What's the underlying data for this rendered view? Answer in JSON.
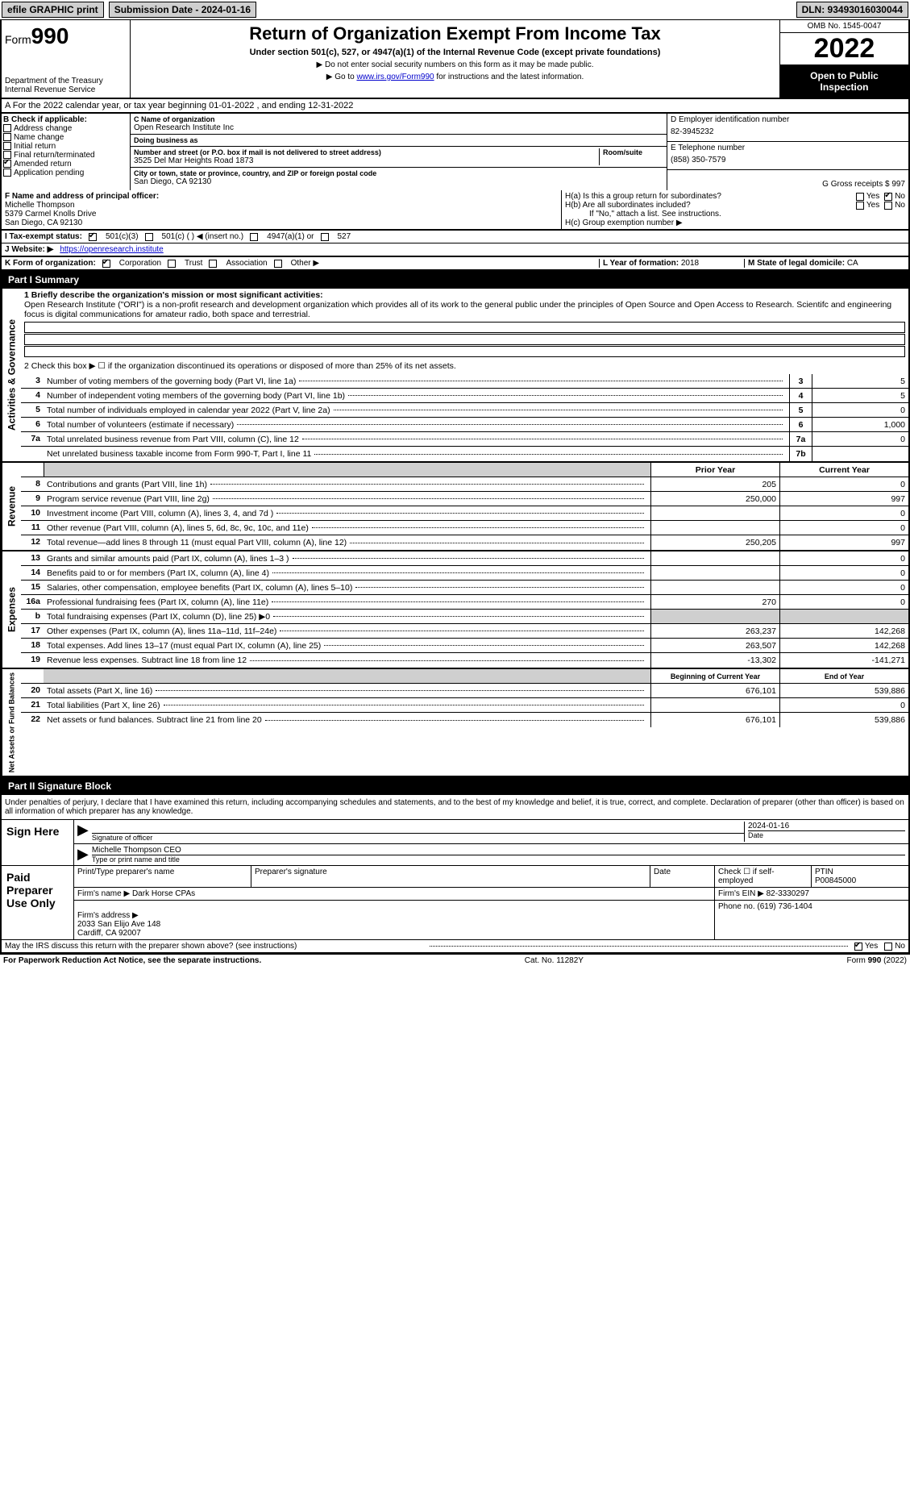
{
  "topbar": {
    "efile": "efile GRAPHIC print",
    "submission_lbl": "Submission Date - 2024-01-16",
    "dln": "DLN: 93493016030044"
  },
  "header": {
    "form_prefix": "Form",
    "form_no": "990",
    "title": "Return of Organization Exempt From Income Tax",
    "subtitle": "Under section 501(c), 527, or 4947(a)(1) of the Internal Revenue Code (except private foundations)",
    "note1": "▶ Do not enter social security numbers on this form as it may be made public.",
    "note2_pre": "▶ Go to ",
    "note2_link": "www.irs.gov/Form990",
    "note2_post": " for instructions and the latest information.",
    "dept": "Department of the Treasury\nInternal Revenue Service",
    "omb": "OMB No. 1545-0047",
    "year": "2022",
    "openpub": "Open to Public Inspection"
  },
  "sectionA": "A For the 2022 calendar year, or tax year beginning 01-01-2022     , and ending 12-31-2022",
  "colB": {
    "head": "B Check if applicable:",
    "items": [
      "Address change",
      "Name change",
      "Initial return",
      "Final return/terminated",
      "Amended return",
      "Application pending"
    ],
    "checked_idx": 4
  },
  "colC": {
    "name_lbl": "C Name of organization",
    "name": "Open Research Institute Inc",
    "dba_lbl": "Doing business as",
    "dba": "",
    "addr_lbl": "Number and street (or P.O. box if mail is not delivered to street address)",
    "room_lbl": "Room/suite",
    "addr": "3525 Del Mar Heights Road 1873",
    "city_lbl": "City or town, state or province, country, and ZIP or foreign postal code",
    "city": "San Diego, CA  92130"
  },
  "colDE": {
    "d_lbl": "D Employer identification number",
    "d_val": "82-3945232",
    "e_lbl": "E Telephone number",
    "e_val": "(858) 350-7579",
    "g_lbl": "G Gross receipts $",
    "g_val": "997"
  },
  "colF": {
    "lbl": "F Name and address of principal officer:",
    "line1": "Michelle Thompson",
    "line2": "5379 Carmel Knolls Drive",
    "line3": "San Diego, CA  92130"
  },
  "colH": {
    "ha": "H(a)  Is this a group return for subordinates?",
    "hb": "H(b)  Are all subordinates included?",
    "hb_note": "If \"No,\" attach a list. See instructions.",
    "hc": "H(c)  Group exemption number ▶",
    "yes": "Yes",
    "no": "No"
  },
  "rowI": {
    "lbl": "I   Tax-exempt status:",
    "opts": [
      "501(c)(3)",
      "501(c) (   ) ◀ (insert no.)",
      "4947(a)(1) or",
      "527"
    ]
  },
  "rowJ": {
    "lbl": "J   Website: ▶",
    "val": "https://openresearch.institute"
  },
  "rowK": {
    "lbl": "K Form of organization:",
    "opts": [
      "Corporation",
      "Trust",
      "Association",
      "Other ▶"
    ],
    "l_lbl": "L Year of formation:",
    "l_val": "2018",
    "m_lbl": "M State of legal domicile:",
    "m_val": "CA"
  },
  "part1": {
    "bar": "Part I      Summary",
    "mission_lbl": "1  Briefly describe the organization's mission or most significant activities:",
    "mission": "Open Research Institute (\"ORI\") is a non-profit research and development organization which provides all of its work to the general public under the principles of Open Source and Open Access to Research. Scientifc and engineering focus is digital communications for amateur radio, both space and terrestrial.",
    "line2": "2   Check this box ▶ ☐  if the organization discontinued its operations or disposed of more than 25% of its net assets.",
    "gov_rows": [
      {
        "n": "3",
        "d": "Number of voting members of the governing body (Part VI, line 1a)",
        "b": "3",
        "v": "5"
      },
      {
        "n": "4",
        "d": "Number of independent voting members of the governing body (Part VI, line 1b)",
        "b": "4",
        "v": "5"
      },
      {
        "n": "5",
        "d": "Total number of individuals employed in calendar year 2022 (Part V, line 2a)",
        "b": "5",
        "v": "0"
      },
      {
        "n": "6",
        "d": "Total number of volunteers (estimate if necessary)",
        "b": "6",
        "v": "1,000"
      },
      {
        "n": "7a",
        "d": "Total unrelated business revenue from Part VIII, column (C), line 12",
        "b": "7a",
        "v": "0"
      },
      {
        "n": "",
        "d": "Net unrelated business taxable income from Form 990-T, Part I, line 11",
        "b": "7b",
        "v": ""
      }
    ],
    "header_prior": "Prior Year",
    "header_curr": "Current Year",
    "rev_rows": [
      {
        "n": "8",
        "d": "Contributions and grants (Part VIII, line 1h)",
        "p": "205",
        "c": "0"
      },
      {
        "n": "9",
        "d": "Program service revenue (Part VIII, line 2g)",
        "p": "250,000",
        "c": "997"
      },
      {
        "n": "10",
        "d": "Investment income (Part VIII, column (A), lines 3, 4, and 7d )",
        "p": "",
        "c": "0"
      },
      {
        "n": "11",
        "d": "Other revenue (Part VIII, column (A), lines 5, 6d, 8c, 9c, 10c, and 11e)",
        "p": "",
        "c": "0"
      },
      {
        "n": "12",
        "d": "Total revenue—add lines 8 through 11 (must equal Part VIII, column (A), line 12)",
        "p": "250,205",
        "c": "997"
      }
    ],
    "exp_rows": [
      {
        "n": "13",
        "d": "Grants and similar amounts paid (Part IX, column (A), lines 1–3 )",
        "p": "",
        "c": "0"
      },
      {
        "n": "14",
        "d": "Benefits paid to or for members (Part IX, column (A), line 4)",
        "p": "",
        "c": "0"
      },
      {
        "n": "15",
        "d": "Salaries, other compensation, employee benefits (Part IX, column (A), lines 5–10)",
        "p": "",
        "c": "0"
      },
      {
        "n": "16a",
        "d": "Professional fundraising fees (Part IX, column (A), line 11e)",
        "p": "270",
        "c": "0"
      },
      {
        "n": "b",
        "d": "Total fundraising expenses (Part IX, column (D), line 25) ▶0",
        "p": "GRAY",
        "c": "GRAY"
      },
      {
        "n": "17",
        "d": "Other expenses (Part IX, column (A), lines 11a–11d, 11f–24e)",
        "p": "263,237",
        "c": "142,268"
      },
      {
        "n": "18",
        "d": "Total expenses. Add lines 13–17 (must equal Part IX, column (A), line 25)",
        "p": "263,507",
        "c": "142,268"
      },
      {
        "n": "19",
        "d": "Revenue less expenses. Subtract line 18 from line 12",
        "p": "-13,302",
        "c": "-141,271"
      }
    ],
    "na_header_b": "Beginning of Current Year",
    "na_header_e": "End of Year",
    "na_rows": [
      {
        "n": "20",
        "d": "Total assets (Part X, line 16)",
        "p": "676,101",
        "c": "539,886"
      },
      {
        "n": "21",
        "d": "Total liabilities (Part X, line 26)",
        "p": "",
        "c": "0"
      },
      {
        "n": "22",
        "d": "Net assets or fund balances. Subtract line 21 from line 20",
        "p": "676,101",
        "c": "539,886"
      }
    ],
    "side_gov": "Activities & Governance",
    "side_rev": "Revenue",
    "side_exp": "Expenses",
    "side_na": "Net Assets or Fund Balances"
  },
  "part2": {
    "bar": "Part II     Signature Block",
    "penalty": "Under penalties of perjury, I declare that I have examined this return, including accompanying schedules and statements, and to the best of my knowledge and belief, it is true, correct, and complete. Declaration of preparer (other than officer) is based on all information of which preparer has any knowledge.",
    "sign_here": "Sign Here",
    "sig_of_officer": "Signature of officer",
    "date": "Date",
    "date_val": "2024-01-16",
    "name_title": "Michelle Thompson CEO",
    "name_title_lbl": "Type or print name and title",
    "paid": "Paid Preparer Use Only",
    "prep_name_lbl": "Print/Type preparer's name",
    "prep_sig_lbl": "Preparer's signature",
    "prep_date_lbl": "Date",
    "check_self": "Check ☐ if self-employed",
    "ptin_lbl": "PTIN",
    "ptin": "P00845000",
    "firm_name_lbl": "Firm's name    ▶",
    "firm_name": "Dark Horse CPAs",
    "firm_ein_lbl": "Firm's EIN ▶",
    "firm_ein": "82-3330297",
    "firm_addr_lbl": "Firm's address ▶",
    "firm_addr": "2033 San Elijo Ave 148\nCardiff, CA  92007",
    "phone_lbl": "Phone no.",
    "phone": "(619) 736-1404",
    "discuss": "May the IRS discuss this return with the preparer shown above? (see instructions)",
    "yes": "Yes",
    "no": "No"
  },
  "footer": {
    "pra": "For Paperwork Reduction Act Notice, see the separate instructions.",
    "cat": "Cat. No. 11282Y",
    "form": "Form 990 (2022)"
  },
  "colors": {
    "gray": "#cfcfcf",
    "black": "#000000",
    "link": "#0000cc"
  }
}
